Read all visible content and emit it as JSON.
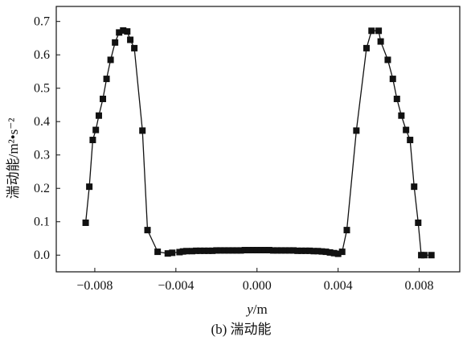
{
  "chart_data": {
    "type": "line",
    "x_label": {
      "symbol": "y",
      "unit": "/m"
    },
    "y_label": "湍动能/m²•s⁻²",
    "caption": "(b) 湍动能",
    "x_ticks": [
      "−0.008",
      "−0.004",
      "0.000",
      "0.004",
      "0.008"
    ],
    "x_tick_values": [
      -0.008,
      -0.004,
      0.0,
      0.004,
      0.008
    ],
    "y_ticks": [
      "0.0",
      "0.1",
      "0.2",
      "0.3",
      "0.4",
      "0.5",
      "0.6",
      "0.7"
    ],
    "y_tick_values": [
      0.0,
      0.1,
      0.2,
      0.3,
      0.4,
      0.5,
      0.6,
      0.7
    ],
    "xlim": [
      -0.0099,
      0.01
    ],
    "ylim": [
      -0.05,
      0.745
    ],
    "grid": false,
    "legend": false,
    "marker": "square",
    "color": "#111111",
    "series": [
      {
        "x": [
          -0.00845,
          -0.00827,
          -0.0081,
          -0.00795,
          -0.0078,
          -0.0076,
          -0.00742,
          -0.00722,
          -0.007,
          -0.0068,
          -0.0066,
          -0.0064,
          -0.00625,
          -0.00605,
          -0.00565,
          -0.0054,
          -0.0049,
          -0.0044,
          -0.00418,
          -0.00382,
          -0.00365,
          -0.00348,
          -0.0032,
          -0.003,
          -0.0028,
          -0.0026,
          -0.0024,
          -0.0022,
          -0.002,
          -0.0018,
          -0.0016,
          -0.0014,
          -0.0012,
          -0.001,
          -0.0008,
          -0.0006,
          -0.0004,
          -0.0002,
          0.0,
          0.0002,
          0.0004,
          0.0006,
          0.0008,
          0.001,
          0.0012,
          0.0014,
          0.0016,
          0.0018,
          0.002,
          0.0022,
          0.0024,
          0.0026,
          0.0028,
          0.003,
          0.0032,
          0.0034,
          0.0036,
          0.0038,
          0.004,
          0.0042,
          0.00443,
          0.0049,
          0.0054,
          0.00565,
          0.006,
          0.0061,
          0.00645,
          0.0067,
          0.0069,
          0.00712,
          0.00735,
          0.00755,
          0.00775,
          0.00795,
          0.0081,
          0.00825,
          0.0086
        ],
        "y": [
          0.097,
          0.205,
          0.345,
          0.375,
          0.418,
          0.468,
          0.528,
          0.585,
          0.637,
          0.667,
          0.673,
          0.67,
          0.645,
          0.62,
          0.373,
          0.075,
          0.01,
          0.005,
          0.007,
          0.009,
          0.011,
          0.012,
          0.012,
          0.013,
          0.013,
          0.013,
          0.013,
          0.013,
          0.014,
          0.014,
          0.014,
          0.014,
          0.014,
          0.014,
          0.014,
          0.015,
          0.015,
          0.015,
          0.015,
          0.015,
          0.015,
          0.015,
          0.014,
          0.014,
          0.014,
          0.014,
          0.014,
          0.014,
          0.013,
          0.013,
          0.013,
          0.013,
          0.012,
          0.012,
          0.011,
          0.01,
          0.008,
          0.006,
          0.004,
          0.01,
          0.075,
          0.373,
          0.62,
          0.672,
          0.672,
          0.64,
          0.585,
          0.528,
          0.468,
          0.418,
          0.375,
          0.345,
          0.205,
          0.097,
          0.0,
          0.0,
          0.0
        ]
      }
    ]
  }
}
